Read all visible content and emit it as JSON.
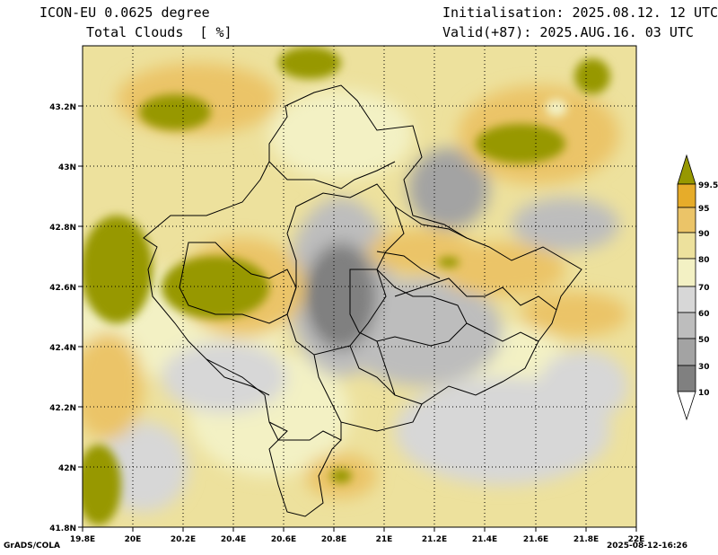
{
  "header": {
    "model": "ICON-EU 0.0625 degree",
    "variable": "Total Clouds  [ %]",
    "init": "Initialisation: 2025.08.12. 12 UTC",
    "valid": "Valid(+87): 2025.AUG.16. 03 UTC"
  },
  "axes": {
    "lon_labels": [
      "19.8E",
      "20E",
      "20.2E",
      "20.4E",
      "20.6E",
      "20.8E",
      "21E",
      "21.2E",
      "21.4E",
      "21.6E",
      "21.8E",
      "22E"
    ],
    "lat_labels": [
      "41.8N",
      "42N",
      "42.2N",
      "42.4N",
      "42.6N",
      "42.8N",
      "43N",
      "43.2N"
    ]
  },
  "colorbar": {
    "labels": [
      "99.5",
      "95",
      "90",
      "80",
      "70",
      "60",
      "50",
      "30",
      "10"
    ],
    "colors": {
      "c10": "#5e5e5e",
      "c30": "#808080",
      "c50": "#a3a3a3",
      "c60": "#bdbdbd",
      "c70": "#d7d7d7",
      "c80": "#f3f1c4",
      "c90": "#ede19d",
      "c95": "#ebc468",
      "c99": "#e6ac2a",
      "c100": "#979800"
    }
  },
  "footer": {
    "left": "GrADS/COLA",
    "right": "2025-08-12-16:26"
  }
}
